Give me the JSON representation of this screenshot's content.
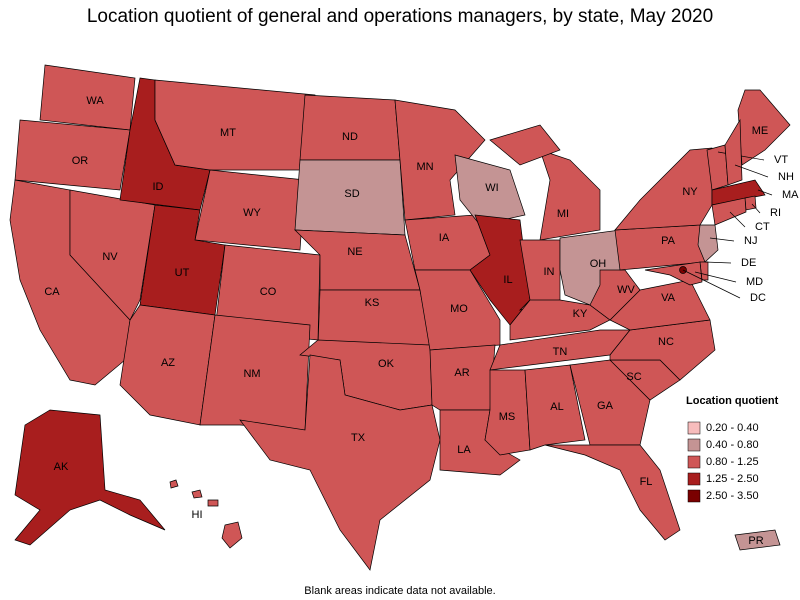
{
  "title": "Location quotient of general and operations managers, by state, May 2020",
  "legend": {
    "title": "Location quotient",
    "items": [
      {
        "label": "0.20 - 0.40",
        "color": "#f7bcbc"
      },
      {
        "label": "0.40 - 0.80",
        "color": "#c49494"
      },
      {
        "label": "0.80 - 1.25",
        "color": "#cf5656"
      },
      {
        "label": "1.25 - 2.50",
        "color": "#a81e1e"
      },
      {
        "label": "2.50 - 3.50",
        "color": "#7a0000"
      }
    ]
  },
  "states": [
    {
      "label": "WA",
      "color": "#cf5656"
    },
    {
      "label": "OR",
      "color": "#cf5656"
    },
    {
      "label": "CA",
      "color": "#cf5656"
    },
    {
      "label": "NV",
      "color": "#cf5656"
    },
    {
      "label": "ID",
      "color": "#a81e1e"
    },
    {
      "label": "MT",
      "color": "#cf5656"
    },
    {
      "label": "WY",
      "color": "#cf5656"
    },
    {
      "label": "UT",
      "color": "#a81e1e"
    },
    {
      "label": "CO",
      "color": "#cf5656"
    },
    {
      "label": "AZ",
      "color": "#cf5656"
    },
    {
      "label": "NM",
      "color": "#cf5656"
    },
    {
      "label": "ND",
      "color": "#cf5656"
    },
    {
      "label": "SD",
      "color": "#c49494"
    },
    {
      "label": "NE",
      "color": "#cf5656"
    },
    {
      "label": "KS",
      "color": "#cf5656"
    },
    {
      "label": "OK",
      "color": "#cf5656"
    },
    {
      "label": "TX",
      "color": "#cf5656"
    },
    {
      "label": "MN",
      "color": "#cf5656"
    },
    {
      "label": "IA",
      "color": "#cf5656"
    },
    {
      "label": "MO",
      "color": "#cf5656"
    },
    {
      "label": "AR",
      "color": "#cf5656"
    },
    {
      "label": "LA",
      "color": "#cf5656"
    },
    {
      "label": "WI",
      "color": "#c49494"
    },
    {
      "label": "IL",
      "color": "#a81e1e"
    },
    {
      "label": "MI",
      "color": "#cf5656"
    },
    {
      "label": "IN",
      "color": "#cf5656"
    },
    {
      "label": "OH",
      "color": "#c49494"
    },
    {
      "label": "KY",
      "color": "#cf5656"
    },
    {
      "label": "TN",
      "color": "#cf5656"
    },
    {
      "label": "MS",
      "color": "#cf5656"
    },
    {
      "label": "AL",
      "color": "#cf5656"
    },
    {
      "label": "GA",
      "color": "#cf5656"
    },
    {
      "label": "FL",
      "color": "#cf5656"
    },
    {
      "label": "SC",
      "color": "#cf5656"
    },
    {
      "label": "NC",
      "color": "#cf5656"
    },
    {
      "label": "VA",
      "color": "#cf5656"
    },
    {
      "label": "WV",
      "color": "#cf5656"
    },
    {
      "label": "PA",
      "color": "#cf5656"
    },
    {
      "label": "NY",
      "color": "#cf5656"
    },
    {
      "label": "ME",
      "color": "#cf5656"
    },
    {
      "label": "VT",
      "color": "#cf5656"
    },
    {
      "label": "NH",
      "color": "#cf5656"
    },
    {
      "label": "MA",
      "color": "#a81e1e"
    },
    {
      "label": "RI",
      "color": "#cf5656"
    },
    {
      "label": "CT",
      "color": "#cf5656"
    },
    {
      "label": "NJ",
      "color": "#c49494"
    },
    {
      "label": "DE",
      "color": "#cf5656"
    },
    {
      "label": "MD",
      "color": "#cf5656"
    },
    {
      "label": "DC",
      "color": "#7a0000"
    },
    {
      "label": "AK",
      "color": "#a81e1e"
    },
    {
      "label": "HI",
      "color": "#cf5656"
    },
    {
      "label": "PR",
      "color": "#c49494"
    }
  ],
  "footnote": "Blank areas indicate data not available."
}
